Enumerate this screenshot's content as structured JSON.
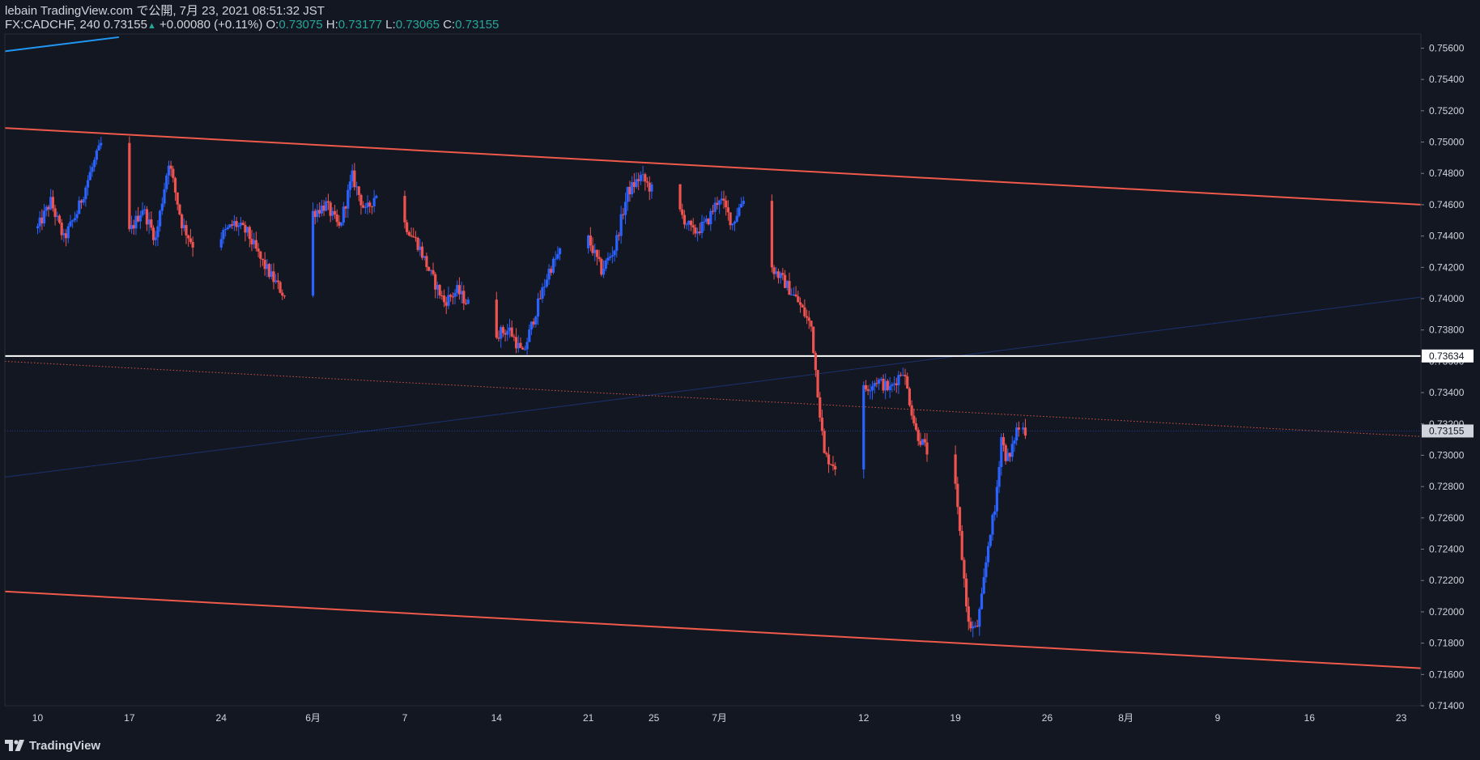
{
  "header": {
    "publish_line": "lebain TradingView.com で公開, 7月 23, 2021 08:51:32 JST",
    "symbol": "FX:CADCHF, 240",
    "last": "0.73155",
    "change": "+0.00080 (+0.11%)",
    "o_label": "O:",
    "o_value": "0.73075",
    "h_label": "H:",
    "h_value": "0.73177",
    "l_label": "L:",
    "l_value": "0.73065",
    "c_label": "C:",
    "c_value": "0.73155"
  },
  "footer": {
    "brand": "TradingView",
    "logo_icon": "tradingview-logo-icon"
  },
  "colors": {
    "background": "#131722",
    "up": "#2962ff",
    "down": "#ef5350",
    "channel": "#f05a4a",
    "trend": "#2196f3",
    "text": "#d1d4dc",
    "teal": "#26a69a"
  },
  "chart_data": {
    "type": "candlestick",
    "symbol": "FX:CADCHF",
    "interval": "240",
    "ylim": [
      0.714,
      0.7568
    ],
    "y_ticks": [
      "0.75600",
      "0.75400",
      "0.75200",
      "0.75000",
      "0.74800",
      "0.74600",
      "0.74400",
      "0.74200",
      "0.74000",
      "0.73800",
      "0.73600",
      "0.73400",
      "0.73200",
      "0.73000",
      "0.72800",
      "0.72600",
      "0.72400",
      "0.72200",
      "0.72000",
      "0.71800",
      "0.71600",
      "0.71400"
    ],
    "x_ticks": [
      "10",
      "17",
      "24",
      "6月",
      "7",
      "14",
      "21",
      "25",
      "7月",
      "12",
      "19",
      "26",
      "8月",
      "9",
      "16",
      "23"
    ],
    "x_tick_days": [
      0,
      7,
      14,
      21,
      28,
      35,
      42,
      47,
      52,
      63,
      70,
      77,
      83,
      90,
      97,
      104
    ],
    "date_axis_origin": "2021-05-10",
    "horizontal_line": {
      "price": 0.73634,
      "label": "0.73634"
    },
    "last_price": {
      "price": 0.73155,
      "label": "0.73155"
    },
    "price_path": [
      [
        0,
        0.7445
      ],
      [
        1,
        0.7462
      ],
      [
        2,
        0.7438
      ],
      [
        3,
        0.7455
      ],
      [
        4,
        0.748
      ],
      [
        5,
        0.7502
      ],
      [
        6,
        0.7472
      ],
      [
        7,
        0.7442
      ],
      [
        8,
        0.7458
      ],
      [
        9,
        0.7438
      ],
      [
        10,
        0.7488
      ],
      [
        11,
        0.7448
      ],
      [
        12,
        0.7432
      ],
      [
        13,
        0.7458
      ],
      [
        14,
        0.744
      ],
      [
        15,
        0.7448
      ],
      [
        16,
        0.7442
      ],
      [
        17,
        0.7425
      ],
      [
        18,
        0.7412
      ],
      [
        19,
        0.74
      ],
      [
        20,
        0.7442
      ],
      [
        21,
        0.7455
      ],
      [
        22,
        0.746
      ],
      [
        23,
        0.7445
      ],
      [
        24,
        0.7478
      ],
      [
        25,
        0.7455
      ],
      [
        26,
        0.747
      ],
      [
        27,
        0.7475
      ],
      [
        28,
        0.7448
      ],
      [
        29,
        0.7435
      ],
      [
        30,
        0.7415
      ],
      [
        31,
        0.7398
      ],
      [
        32,
        0.7405
      ],
      [
        33,
        0.7395
      ],
      [
        34,
        0.74
      ],
      [
        35,
        0.7378
      ],
      [
        36,
        0.738
      ],
      [
        37,
        0.7364
      ],
      [
        38,
        0.7392
      ],
      [
        39,
        0.7418
      ],
      [
        40,
        0.7432
      ],
      [
        41,
        0.7418
      ],
      [
        42,
        0.7438
      ],
      [
        43,
        0.7418
      ],
      [
        44,
        0.7432
      ],
      [
        45,
        0.7468
      ],
      [
        46,
        0.7478
      ],
      [
        47,
        0.7468
      ],
      [
        48,
        0.7458
      ],
      [
        49,
        0.7455
      ],
      [
        50,
        0.7442
      ],
      [
        51,
        0.7448
      ],
      [
        52,
        0.7465
      ],
      [
        53,
        0.7448
      ],
      [
        54,
        0.7468
      ],
      [
        55,
        0.7472
      ],
      [
        56,
        0.742
      ],
      [
        57,
        0.741
      ],
      [
        58,
        0.7398
      ],
      [
        59,
        0.7382
      ],
      [
        60,
        0.73
      ],
      [
        61,
        0.7292
      ],
      [
        62,
        0.733
      ],
      [
        63,
        0.7342
      ],
      [
        64,
        0.7348
      ],
      [
        65,
        0.7342
      ],
      [
        66,
        0.7355
      ],
      [
        67,
        0.7315
      ],
      [
        68,
        0.73
      ],
      [
        69,
        0.731
      ],
      [
        69.5,
        0.7302
      ],
      [
        70,
        0.7278
      ],
      [
        71,
        0.7192
      ],
      [
        71.6,
        0.7188
      ],
      [
        72,
        0.7208
      ],
      [
        72.6,
        0.725
      ],
      [
        73,
        0.7264
      ],
      [
        73.5,
        0.7312
      ],
      [
        73.8,
        0.73
      ],
      [
        74.2,
        0.7298
      ],
      [
        74.6,
        0.7316
      ],
      [
        75,
        0.7318
      ],
      [
        75.4,
        0.73155
      ]
    ],
    "trendlines": [
      {
        "name": "channel-upper",
        "p1": [
          -2.5,
          0.7509
        ],
        "p2": [
          105.5,
          0.746
        ],
        "color": "#f05a4a"
      },
      {
        "name": "channel-lower",
        "p1": [
          -2.5,
          0.7213
        ],
        "p2": [
          105.5,
          0.7164
        ],
        "color": "#f05a4a"
      },
      {
        "name": "channel-mid",
        "p1": [
          -2.5,
          0.736
        ],
        "p2": [
          105.5,
          0.7312
        ],
        "color": "#f05a4a",
        "style": "dotted"
      },
      {
        "name": "rising-line",
        "p1": [
          -2.5,
          0.7286
        ],
        "p2": [
          105.5,
          0.7401
        ],
        "color": "#2962ff",
        "style": "faint"
      },
      {
        "name": "top-left-line",
        "p1": [
          -2.5,
          0.7558
        ],
        "p2": [
          6.2,
          0.7567
        ],
        "color": "#2196f3"
      }
    ],
    "grid": false
  }
}
